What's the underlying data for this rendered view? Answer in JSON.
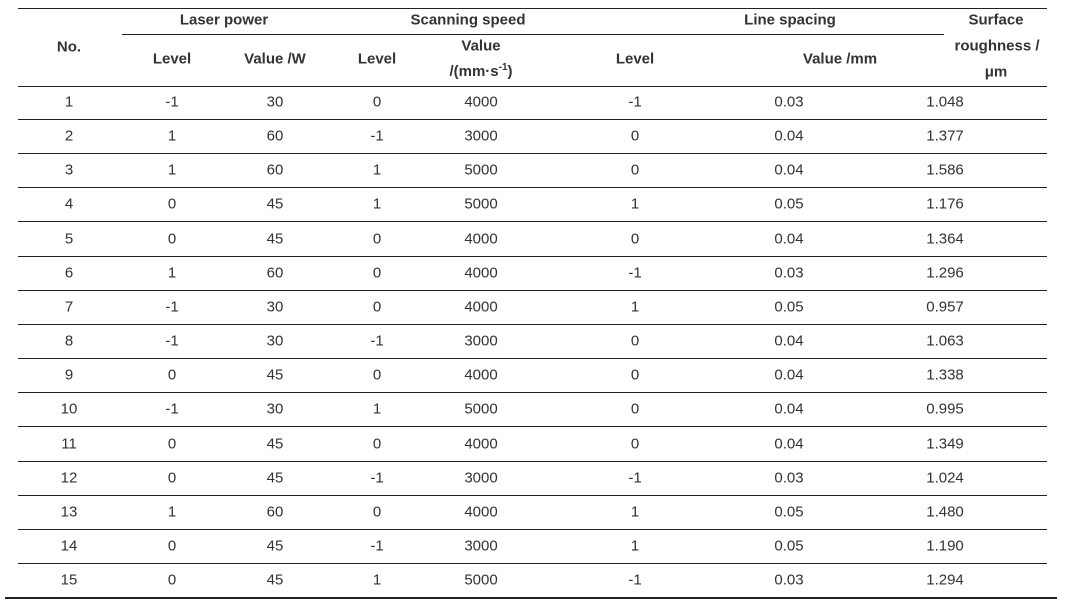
{
  "table": {
    "header": {
      "no": "No.",
      "laser_power": "Laser power",
      "scanning_speed": "Scanning speed",
      "line_spacing": "Line spacing",
      "surface_roughness_1": "Surface",
      "surface_roughness_2": "roughness /",
      "surface_roughness_3": "μm",
      "level": "Level",
      "value_w": "Value /W",
      "value_speed_1": "Value",
      "value_speed_2": "/(mm·s",
      "value_speed_sup": "-1",
      "value_speed_close": ")",
      "value_mm": "Value /mm"
    },
    "rows": [
      [
        "1",
        "-1",
        "30",
        "0",
        "4000",
        "-1",
        "0.03",
        "1.048"
      ],
      [
        "2",
        "1",
        "60",
        "-1",
        "3000",
        "0",
        "0.04",
        "1.377"
      ],
      [
        "3",
        "1",
        "60",
        "1",
        "5000",
        "0",
        "0.04",
        "1.586"
      ],
      [
        "4",
        "0",
        "45",
        "1",
        "5000",
        "1",
        "0.05",
        "1.176"
      ],
      [
        "5",
        "0",
        "45",
        "0",
        "4000",
        "0",
        "0.04",
        "1.364"
      ],
      [
        "6",
        "1",
        "60",
        "0",
        "4000",
        "-1",
        "0.03",
        "1.296"
      ],
      [
        "7",
        "-1",
        "30",
        "0",
        "4000",
        "1",
        "0.05",
        "0.957"
      ],
      [
        "8",
        "-1",
        "30",
        "-1",
        "3000",
        "0",
        "0.04",
        "1.063"
      ],
      [
        "9",
        "0",
        "45",
        "0",
        "4000",
        "0",
        "0.04",
        "1.338"
      ],
      [
        "10",
        "-1",
        "30",
        "1",
        "5000",
        "0",
        "0.04",
        "0.995"
      ],
      [
        "11",
        "0",
        "45",
        "0",
        "4000",
        "0",
        "0.04",
        "1.349"
      ],
      [
        "12",
        "0",
        "45",
        "-1",
        "3000",
        "-1",
        "0.03",
        "1.024"
      ],
      [
        "13",
        "1",
        "60",
        "0",
        "4000",
        "1",
        "0.05",
        "1.480"
      ],
      [
        "14",
        "0",
        "45",
        "-1",
        "3000",
        "1",
        "0.05",
        "1.190"
      ],
      [
        "15",
        "0",
        "45",
        "1",
        "5000",
        "-1",
        "0.03",
        "1.294"
      ]
    ]
  }
}
